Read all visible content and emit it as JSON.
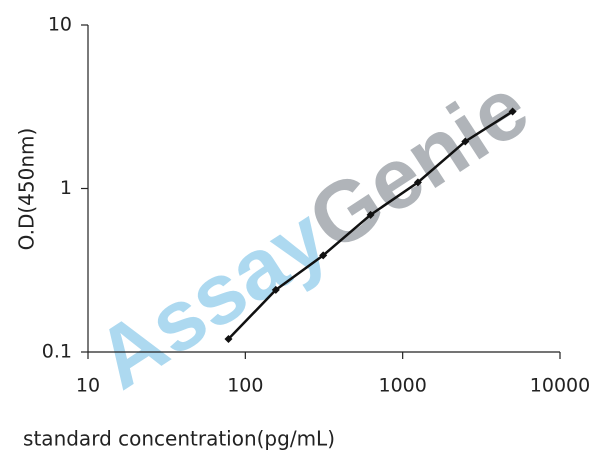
{
  "chart_data": {
    "type": "line",
    "watermark": {
      "parts": [
        "Assay",
        "Genie"
      ],
      "colors": [
        "#9fd3ee",
        "#a3a8ad"
      ]
    },
    "x_label": "standard concentration(pg/mL)",
    "y_label": "O.D(450nm)",
    "xlog": true,
    "ylog": true,
    "xlim": [
      10,
      10000
    ],
    "ylim": [
      0.1,
      10
    ],
    "xticks": [
      10,
      100,
      1000,
      10000
    ],
    "yticks": [
      0.1,
      1,
      10
    ],
    "x": [
      78.125,
      156.25,
      312.5,
      625,
      1250,
      2500,
      5000
    ],
    "series": [
      {
        "color": "#111111",
        "values": [
          0.12,
          0.24,
          0.39,
          0.69,
          1.09,
          1.94,
          2.96
        ]
      }
    ]
  }
}
